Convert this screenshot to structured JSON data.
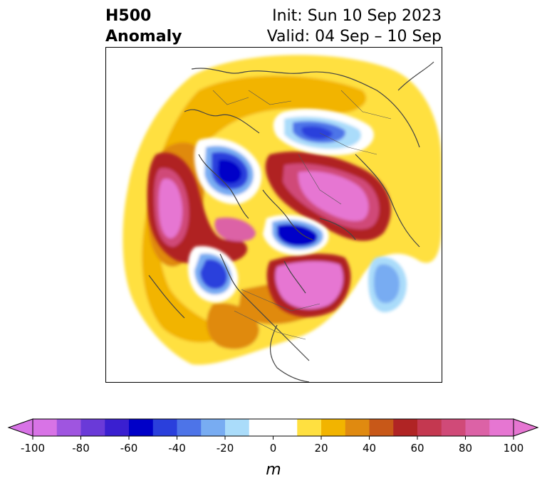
{
  "header": {
    "title_line1": "H500",
    "title_line2": "Anomaly",
    "init_label": "Init: Sun 10 Sep 2023",
    "valid_label": "Valid: 04 Sep – 10 Sep"
  },
  "colorbar": {
    "unit_label": "m",
    "ticks": [
      "-100",
      "-80",
      "-60",
      "-40",
      "-20",
      "0",
      "20",
      "40",
      "60",
      "80",
      "100"
    ],
    "levels": [
      -100,
      -90,
      -80,
      -70,
      -60,
      -50,
      -40,
      -30,
      -20,
      -10,
      10,
      20,
      30,
      40,
      50,
      60,
      70,
      80,
      90,
      100
    ],
    "colors": [
      "#d873e6",
      "#9f55e0",
      "#6a3ad8",
      "#3a1fd0",
      "#0000c8",
      "#2a3fdc",
      "#4d74e8",
      "#78acf2",
      "#aadcfa",
      "#ffffff",
      "#ffe040",
      "#f2b400",
      "#e08a10",
      "#c85818",
      "#b02424",
      "#c43850",
      "#d04a78",
      "#dc62a6",
      "#e676d2"
    ]
  },
  "colors": {
    "coastline": "#444444",
    "frame": "#000000"
  }
}
